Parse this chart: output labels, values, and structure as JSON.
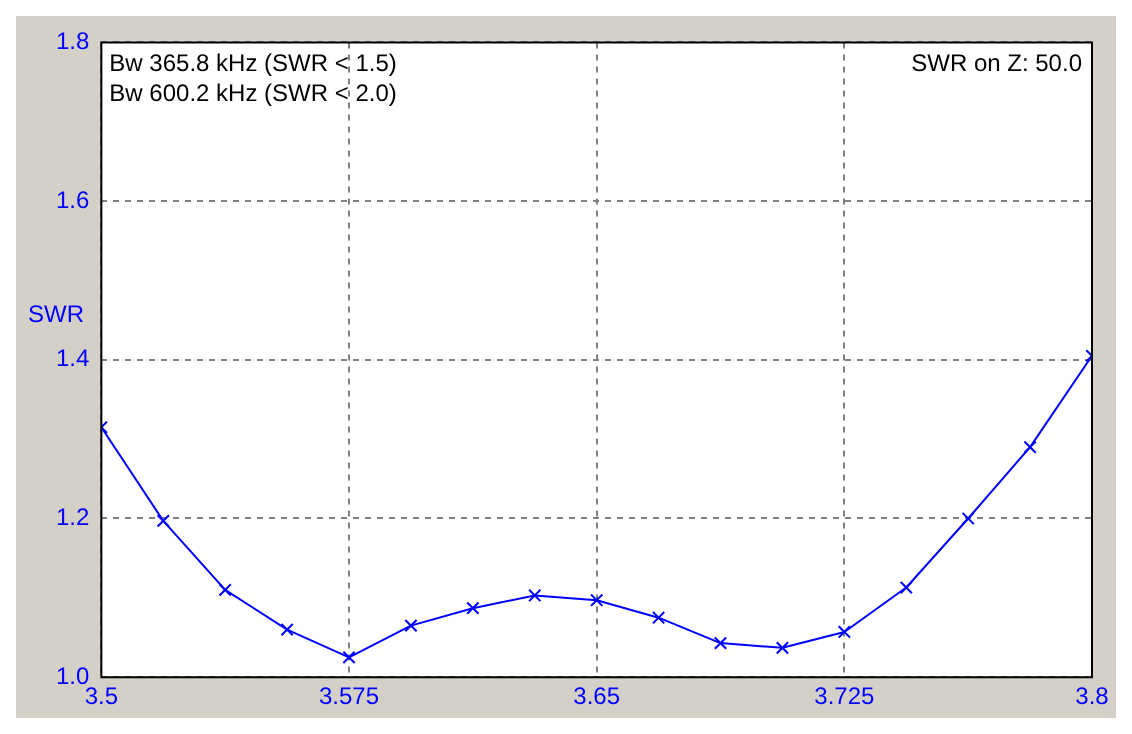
{
  "chart_data": {
    "type": "line",
    "ylabel": "SWR",
    "annotations": [
      "Bw 365.8 kHz (SWR < 1.5)",
      "Bw 600.2 kHz (SWR < 2.0)",
      "SWR on Z: 50.0"
    ],
    "x": [
      3.5,
      3.51875,
      3.5375,
      3.55625,
      3.575,
      3.59375,
      3.6125,
      3.63125,
      3.65,
      3.66875,
      3.6875,
      3.70625,
      3.725,
      3.74375,
      3.7625,
      3.78125,
      3.8
    ],
    "series": [
      {
        "color": "#0000ff",
        "values": [
          1.315,
          1.197,
          1.11,
          1.06,
          1.025,
          1.065,
          1.087,
          1.103,
          1.097,
          1.075,
          1.043,
          1.037,
          1.057,
          1.113,
          1.2,
          1.29,
          1.405
        ]
      }
    ],
    "xlim": [
      3.5,
      3.8
    ],
    "xticks": [
      3.5,
      3.575,
      3.65,
      3.725,
      3.8
    ],
    "ylim": [
      1.0,
      1.8
    ],
    "yticks": [
      {
        "value": 1.0,
        "label": "1.0"
      },
      {
        "value": 1.2,
        "label": "1.2"
      },
      {
        "value": 1.4,
        "label": "1.4"
      },
      {
        "value": 1.6,
        "label": "1.6"
      },
      {
        "value": 1.8,
        "label": "1.8"
      }
    ],
    "grid": true,
    "legend": false,
    "marker": "cross",
    "line_style": "solid"
  }
}
